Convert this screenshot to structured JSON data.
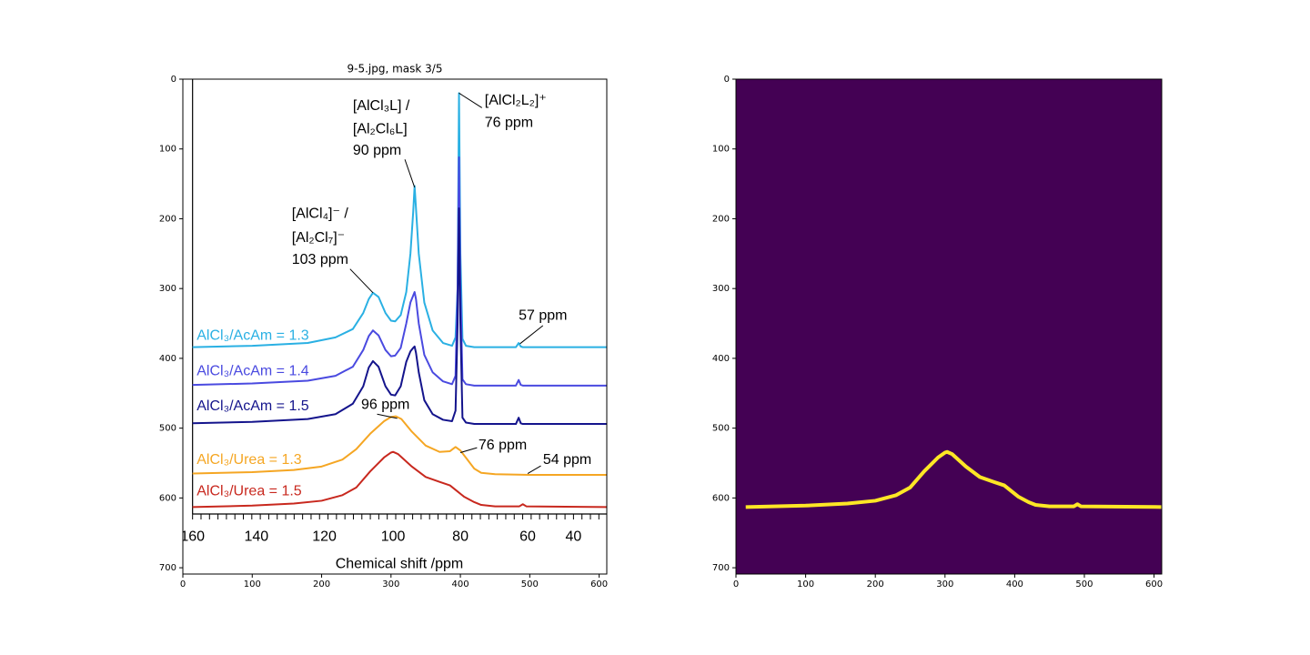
{
  "chart_data": [
    {
      "type": "image",
      "title": "9-5.jpg, mask 3/5",
      "background": "#ffffff",
      "xlim": [
        0,
        611
      ],
      "ylim": [
        709,
        0
      ],
      "xticks": [
        0,
        100,
        200,
        300,
        400,
        500,
        600
      ],
      "yticks": [
        0,
        100,
        200,
        300,
        400,
        500,
        600,
        700
      ],
      "series": [
        {
          "name": "AlCl₃/AcAm = 1.3",
          "color": "#2ab0e3",
          "x": [
            14,
            100,
            180,
            220,
            245,
            260,
            268,
            274,
            282,
            292,
            300,
            306,
            314,
            322,
            328,
            332,
            334,
            336,
            340,
            348,
            360,
            375,
            388,
            393,
            396,
            398,
            400,
            403,
            408,
            420,
            480,
            484,
            487,
            490,
            540,
            611
          ],
          "values": [
            384,
            382,
            378,
            370,
            358,
            335,
            315,
            306,
            312,
            335,
            346,
            347,
            338,
            305,
            250,
            190,
            153,
            185,
            250,
            320,
            360,
            378,
            382,
            370,
            300,
            20,
            250,
            372,
            382,
            384,
            384,
            378,
            383,
            384,
            384,
            384
          ]
        },
        {
          "name": "AlCl₃/AcAm = 1.4",
          "color": "#4a4ae0",
          "x": [
            14,
            100,
            180,
            220,
            245,
            260,
            268,
            274,
            282,
            292,
            300,
            306,
            314,
            322,
            328,
            332,
            334,
            336,
            340,
            348,
            360,
            375,
            388,
            393,
            396,
            398,
            400,
            403,
            408,
            420,
            480,
            484,
            487,
            490,
            540,
            611
          ],
          "values": [
            438,
            436,
            432,
            425,
            412,
            388,
            368,
            360,
            367,
            388,
            397,
            396,
            385,
            350,
            320,
            310,
            305,
            315,
            350,
            395,
            420,
            433,
            437,
            425,
            300,
            112,
            300,
            430,
            437,
            439,
            439,
            431,
            438,
            439,
            439,
            439
          ]
        },
        {
          "name": "AlCl₃/AcAm = 1.5",
          "color": "#14148c",
          "x": [
            14,
            100,
            180,
            220,
            245,
            260,
            268,
            274,
            282,
            292,
            300,
            306,
            314,
            322,
            328,
            332,
            334,
            336,
            340,
            348,
            360,
            375,
            388,
            393,
            396,
            398,
            400,
            403,
            408,
            420,
            480,
            484,
            487,
            490,
            540,
            611
          ],
          "values": [
            493,
            491,
            487,
            480,
            465,
            440,
            413,
            404,
            412,
            440,
            452,
            453,
            440,
            405,
            390,
            385,
            383,
            392,
            420,
            460,
            480,
            488,
            490,
            475,
            350,
            185,
            350,
            485,
            492,
            494,
            494,
            485,
            493,
            494,
            494,
            494
          ]
        },
        {
          "name": "AlCl₃/Urea = 1.3",
          "color": "#f5a623",
          "x": [
            14,
            100,
            160,
            200,
            230,
            250,
            270,
            290,
            300,
            307,
            315,
            330,
            350,
            370,
            385,
            393,
            400,
            410,
            420,
            430,
            450,
            500,
            611
          ],
          "values": [
            565,
            563,
            560,
            555,
            545,
            530,
            508,
            490,
            484,
            483,
            487,
            505,
            525,
            534,
            533,
            527,
            532,
            545,
            558,
            564,
            566,
            567,
            567
          ]
        },
        {
          "name": "AlCl₃/Urea = 1.5",
          "color": "#c8281e",
          "x": [
            14,
            100,
            160,
            200,
            230,
            250,
            270,
            290,
            300,
            303,
            310,
            330,
            350,
            370,
            385,
            395,
            405,
            420,
            430,
            450,
            485,
            490,
            495,
            611
          ],
          "values": [
            613,
            611,
            608,
            604,
            596,
            585,
            562,
            542,
            535,
            534,
            537,
            555,
            570,
            577,
            582,
            590,
            598,
            606,
            610,
            612,
            612,
            609,
            612,
            613
          ]
        }
      ],
      "annotations": [
        "[AlCl₃L] /",
        "[Al₂Cl₆L]",
        "90 ppm",
        "[AlCl₂L₂]⁺",
        "76 ppm",
        "[AlCl₄]⁻ /",
        "[Al₂Cl₇]⁻",
        "103 ppm",
        "57 ppm",
        "96 ppm",
        "76 ppm",
        "54 ppm"
      ],
      "inner_axis": {
        "label": "Chemical shift /ppm",
        "ticks": [
          "160",
          "140",
          "120",
          "100",
          "80",
          "60",
          "40"
        ]
      }
    },
    {
      "type": "image",
      "background": "#440154",
      "xlim": [
        0,
        611
      ],
      "ylim": [
        709,
        0
      ],
      "xticks": [
        0,
        100,
        200,
        300,
        400,
        500,
        600
      ],
      "yticks": [
        0,
        100,
        200,
        300,
        400,
        500,
        600,
        700
      ],
      "series": [
        {
          "color": "#fde725",
          "x": [
            14,
            100,
            160,
            200,
            230,
            250,
            270,
            290,
            300,
            303,
            310,
            330,
            350,
            370,
            385,
            395,
            405,
            420,
            430,
            450,
            485,
            490,
            495,
            611
          ],
          "values": [
            613,
            611,
            608,
            604,
            596,
            585,
            562,
            542,
            535,
            534,
            537,
            555,
            570,
            577,
            582,
            590,
            598,
            606,
            610,
            612,
            612,
            609,
            612,
            613
          ]
        }
      ]
    }
  ]
}
